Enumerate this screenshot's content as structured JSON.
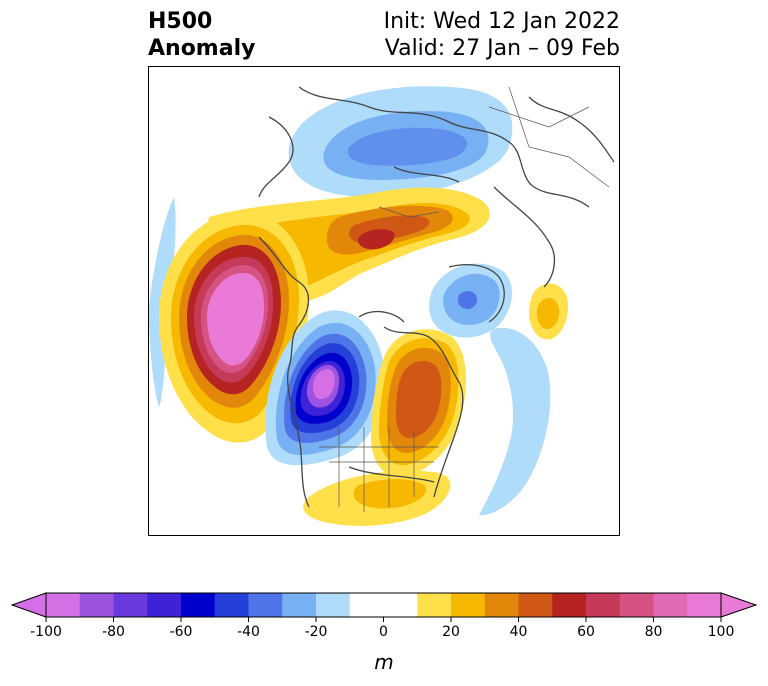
{
  "header": {
    "title_line1": "H500",
    "title_line2": "Anomaly",
    "init_label": "Init: Wed 12 Jan 2022",
    "valid_label": "Valid: 27 Jan – 09 Feb"
  },
  "colorbar": {
    "ticks": [
      "-100",
      "-80",
      "-60",
      "-40",
      "-20",
      "0",
      "20",
      "40",
      "60",
      "80",
      "100"
    ],
    "unit": "m",
    "colors": [
      "#d56fe6",
      "#9c54e0",
      "#6a3ade",
      "#3d22d6",
      "#0000cc",
      "#2540d8",
      "#4e74e8",
      "#78b0f4",
      "#aedcfa",
      "#ffffff",
      "#ffffff",
      "#ffe04a",
      "#f6b800",
      "#e3870a",
      "#cf5814",
      "#b52420",
      "#c43a58",
      "#d55282",
      "#e06ab4",
      "#e97ad6"
    ],
    "min": -100,
    "max": 100
  },
  "map": {
    "palette": {
      "blue_light": "#aedcfa",
      "blue_mid": "#78b0f4",
      "blue_dark": "#4e74e8",
      "blue_deep": "#0000cc",
      "purple": "#6a3ade",
      "violet": "#d56fe6",
      "yellow": "#ffe04a",
      "gold": "#f6b800",
      "orange": "#e3870a",
      "burnt": "#cf5814",
      "red": "#b52420",
      "rose": "#c43a58",
      "pink": "#d55282",
      "magenta": "#e97ad6",
      "coast": "#444444"
    }
  }
}
